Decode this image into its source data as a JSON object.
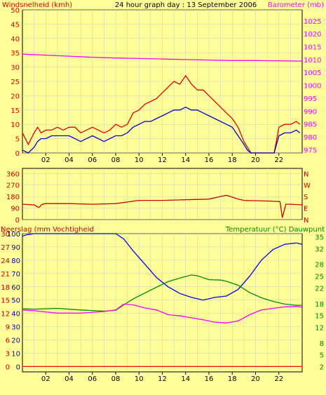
{
  "colors": {
    "background": "#ffff99",
    "plot": "#ffff99",
    "frame": "#000000",
    "grid": "#c8c8c8",
    "wind_max": "#e00000",
    "wind_avg": "#0000cc",
    "barometer": "#ff00ff",
    "direction": "#cc0000",
    "humidity": "#0000ff",
    "temperature": "#008800",
    "dewpoint": "#ff00ff",
    "rain": "#ff0000"
  },
  "chart_data": [
    {
      "type": "line",
      "title": "24 hour graph day : 13 September 2006",
      "ylabel": "Windsnelheid (kmh)",
      "y2label": "Barometer (mb)",
      "xticks": [
        "02",
        "04",
        "06",
        "08",
        "10",
        "12",
        "14",
        "16",
        "18",
        "20",
        "22"
      ],
      "xlim": [
        0,
        24
      ],
      "ylim": [
        0,
        50
      ],
      "yticks": [
        0,
        5,
        10,
        15,
        20,
        25,
        30,
        35,
        40,
        45,
        50
      ],
      "y2lim": [
        973.75,
        1029.3
      ],
      "y2ticks": [
        975,
        980,
        985,
        990,
        995,
        1000,
        1005,
        1010,
        1015,
        1020,
        1025
      ],
      "grid": true,
      "series": [
        {
          "role": "wind_max",
          "axis": "left",
          "x": [
            0.0,
            0.5,
            1.0,
            1.3,
            1.6,
            2.0,
            2.5,
            3.0,
            3.5,
            4.0,
            4.5,
            5.0,
            5.5,
            6.0,
            6.5,
            7.0,
            7.5,
            8.0,
            8.5,
            9.0,
            9.5,
            10.0,
            10.5,
            11.0,
            11.5,
            12.0,
            12.5,
            13.0,
            13.5,
            14.0,
            14.5,
            15.0,
            15.5,
            16.0,
            16.5,
            17.0,
            17.5,
            18.0,
            18.5,
            19.0,
            19.3,
            19.6,
            20.0,
            21.0,
            21.6,
            22.0,
            22.5,
            23.0,
            23.5,
            23.8
          ],
          "values": [
            7,
            3,
            7,
            9,
            7,
            8,
            8,
            9,
            8,
            9,
            9,
            7,
            8,
            9,
            8,
            7,
            8,
            10,
            9,
            10,
            14,
            15,
            17,
            18,
            19,
            21,
            23,
            25,
            24,
            27,
            24,
            22,
            22,
            20,
            18,
            16,
            14,
            12,
            9,
            4,
            2,
            0,
            0,
            0,
            0,
            9,
            10,
            10,
            11,
            10
          ]
        },
        {
          "role": "wind_avg",
          "axis": "left",
          "x": [
            0.0,
            0.5,
            1.0,
            1.3,
            1.6,
            2.0,
            2.5,
            3.0,
            3.5,
            4.0,
            4.5,
            5.0,
            5.5,
            6.0,
            6.5,
            7.0,
            7.5,
            8.0,
            8.5,
            9.0,
            9.5,
            10.0,
            10.5,
            11.0,
            11.5,
            12.0,
            12.5,
            13.0,
            13.5,
            14.0,
            14.5,
            15.0,
            15.5,
            16.0,
            16.5,
            17.0,
            17.5,
            18.0,
            18.5,
            19.0,
            19.3,
            19.6,
            20.0,
            21.0,
            21.6,
            22.0,
            22.5,
            23.0,
            23.5,
            23.8
          ],
          "values": [
            1,
            0,
            2,
            4,
            5,
            5,
            6,
            6,
            6,
            6,
            5,
            4,
            5,
            6,
            5,
            4,
            5,
            6,
            6,
            7,
            9,
            10,
            11,
            11,
            12,
            13,
            14,
            15,
            15,
            16,
            15,
            15,
            14,
            13,
            12,
            11,
            10,
            9,
            6,
            3,
            1,
            0,
            0,
            0,
            0,
            6,
            7,
            7,
            8,
            7
          ]
        },
        {
          "role": "barometer",
          "axis": "right",
          "x": [
            0,
            2,
            4,
            6,
            8,
            10,
            12,
            14,
            16,
            18,
            20,
            22,
            24
          ],
          "values": [
            1012.1,
            1011.7,
            1011.3,
            1010.9,
            1010.6,
            1010.4,
            1010.2,
            1010.0,
            1009.8,
            1009.6,
            1009.6,
            1009.5,
            1009.4
          ]
        }
      ]
    },
    {
      "type": "line",
      "title": "",
      "ylim": [
        0,
        400
      ],
      "yticks": [
        0,
        90,
        180,
        270,
        360
      ],
      "y2ticks": [
        "N",
        "E",
        "S",
        "W",
        "N"
      ],
      "xticks": [],
      "xlim": [
        0,
        24
      ],
      "grid": true,
      "series": [
        {
          "role": "direction",
          "x": [
            0,
            1,
            1.4,
            1.7,
            2,
            4,
            6,
            8,
            10,
            12,
            14,
            16,
            17.5,
            18.5,
            19,
            21,
            22.1,
            22.3,
            22.6,
            23,
            24
          ],
          "values": [
            120,
            115,
            95,
            120,
            125,
            125,
            120,
            125,
            150,
            150,
            155,
            160,
            190,
            160,
            150,
            145,
            140,
            15,
            120,
            120,
            115
          ]
        }
      ]
    },
    {
      "type": "line",
      "title": "",
      "ylabel": "Neerslag (mm Vochtigheid",
      "y2label": "Temperatuur (°C) Dauwpunt",
      "xticks": [
        "02",
        "04",
        "06",
        "08",
        "10",
        "12",
        "14",
        "16",
        "18",
        "20",
        "22"
      ],
      "xlim": [
        0,
        24
      ],
      "ylim": [
        -4,
        100
      ],
      "yticks_rain": [
        0,
        3,
        6,
        9,
        12,
        15,
        18,
        21,
        24,
        27,
        30
      ],
      "yticks_humidity": [
        0,
        10,
        20,
        30,
        40,
        50,
        60,
        70,
        80,
        90,
        100
      ],
      "y2lim": [
        0.67,
        35.8
      ],
      "y2ticks": [
        2,
        5,
        8,
        12,
        15,
        18,
        22,
        25,
        28,
        32,
        35
      ],
      "grid": true,
      "series": [
        {
          "role": "humidity",
          "axis": "humidity",
          "x": [
            0,
            0.3,
            1,
            4,
            6,
            8,
            8.7,
            9.5,
            10.5,
            11.5,
            12.5,
            13.5,
            14.5,
            15.5,
            16.5,
            17.5,
            18.5,
            19.5,
            20.5,
            21.5,
            22.5,
            23.5,
            24
          ],
          "values": [
            98,
            99,
            100,
            100,
            100,
            100,
            96,
            87,
            77,
            67,
            60,
            55,
            52,
            50,
            52,
            53,
            58,
            68,
            80,
            88,
            92,
            93,
            92
          ]
        },
        {
          "role": "temperature",
          "axis": "right",
          "x": [
            0,
            1,
            3,
            5,
            7,
            8,
            8.7,
            9.5,
            10.5,
            11.5,
            12.5,
            13.5,
            14.5,
            15,
            16,
            17,
            17.5,
            18.5,
            19.5,
            20.5,
            21.5,
            22.5,
            23.5,
            24
          ],
          "values": [
            16.7,
            16.6,
            16.8,
            16.4,
            16.1,
            16.3,
            17.7,
            19.2,
            20.7,
            22.2,
            23.6,
            24.5,
            25.3,
            25.1,
            24.1,
            24.0,
            23.7,
            22.7,
            20.8,
            19.5,
            18.6,
            17.9,
            17.6,
            17.6
          ]
        },
        {
          "role": "dewpoint",
          "axis": "right",
          "x": [
            0,
            1,
            3,
            5,
            7,
            8,
            8.7,
            9.5,
            10.5,
            11.5,
            12.5,
            13.5,
            14.5,
            15.5,
            16.5,
            17.5,
            18.5,
            19.5,
            20.5,
            21.5,
            22.5,
            23.5,
            24
          ],
          "values": [
            16.4,
            16.2,
            15.6,
            15.6,
            16.0,
            16.4,
            17.9,
            17.7,
            16.9,
            16.4,
            15.2,
            14.9,
            14.4,
            13.9,
            13.3,
            13.1,
            13.6,
            15.2,
            16.4,
            16.8,
            17.2,
            17.3,
            17.1
          ]
        },
        {
          "role": "rain",
          "axis": "rain",
          "x": [
            0,
            24
          ],
          "values": [
            0,
            0
          ]
        }
      ]
    }
  ]
}
